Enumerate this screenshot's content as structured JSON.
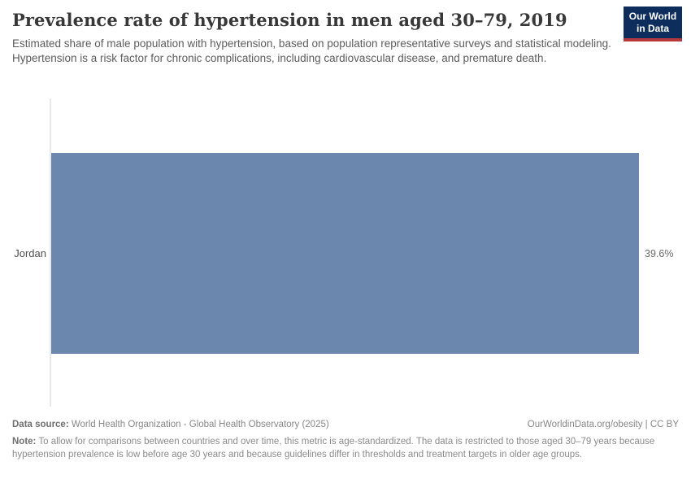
{
  "header": {
    "title": "Prevalence rate of hypertension in men aged 30–79, 2019",
    "subtitle": "Estimated share of male population with hypertension, based on population representative surveys and statistical modeling. Hypertension is a risk factor for chronic complications, including cardiovascular disease, and premature death."
  },
  "logo": {
    "line1": "Our World",
    "line2": "in Data",
    "bg_color": "#0d2e5c",
    "accent_color": "#b5393b"
  },
  "chart_data": {
    "type": "bar",
    "orientation": "horizontal",
    "title": "Prevalence rate of hypertension in men aged 30–79, 2019",
    "categories": [
      "Jordan"
    ],
    "values": [
      39.6
    ],
    "value_labels": [
      "39.6%"
    ],
    "unit": "%",
    "xlim": [
      0,
      39.6
    ],
    "bar_color": "#6c87ae",
    "axis_line_color": "#e9e9e9",
    "grid": false,
    "legend": false
  },
  "footer": {
    "data_source_label": "Data source:",
    "data_source": " World Health Organization - Global Health Observatory (2025)",
    "license": "OurWorldinData.org/obesity | CC BY",
    "note_label": "Note:",
    "note": " To allow for comparisons between countries and over time, this metric is age-standardized. The data is restricted to those aged 30–79 years because hypertension prevalence is low before age 30 years and because guidelines differ in thresholds and treatment targets in older age groups."
  }
}
